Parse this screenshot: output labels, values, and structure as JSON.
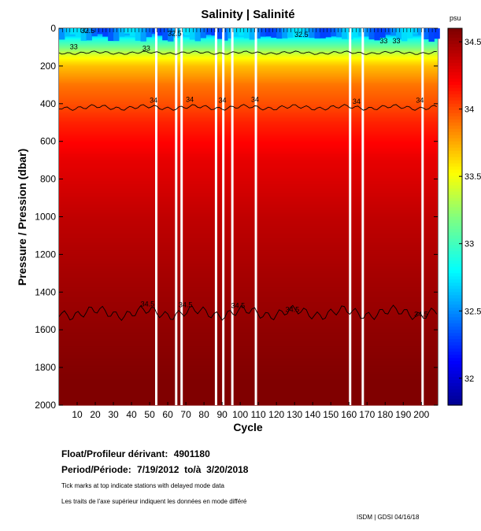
{
  "chart_data": {
    "type": "heatmap",
    "title": "Salinity | Salinité",
    "xlabel": "Cycle",
    "ylabel": "Pressure / Pression (dbar)",
    "xlim": [
      0,
      209
    ],
    "ylim": [
      2000,
      0
    ],
    "x_ticks": [
      10,
      20,
      30,
      40,
      50,
      60,
      70,
      80,
      90,
      100,
      110,
      120,
      130,
      140,
      150,
      160,
      170,
      180,
      190,
      200
    ],
    "x_tick_labels": [
      "10",
      "20",
      "30",
      "40",
      "50",
      "60",
      "70",
      "80",
      "90",
      "100",
      "110",
      "120",
      "130",
      "140",
      "150",
      "160",
      "170",
      "180",
      "190",
      "200"
    ],
    "y_ticks": [
      0,
      200,
      400,
      600,
      800,
      1000,
      1200,
      1400,
      1600,
      1800,
      2000
    ],
    "y_tick_labels": [
      "0",
      "200",
      "400",
      "600",
      "800",
      "1000",
      "1200",
      "1400",
      "1600",
      "1800",
      "2000"
    ],
    "colorbar": {
      "unit": "psu",
      "range": [
        31.8,
        34.6
      ],
      "ticks": [
        32,
        32.5,
        33,
        33.5,
        34,
        34.5
      ],
      "tick_labels": [
        "32",
        "32.5",
        "33",
        "33.5",
        "34",
        "34.5"
      ]
    },
    "profile": {
      "pressure": [
        0,
        30,
        60,
        100,
        150,
        200,
        300,
        400,
        500,
        700,
        1000,
        1300,
        1600,
        2000
      ],
      "salinity": [
        32.35,
        32.55,
        32.9,
        33.15,
        33.5,
        33.7,
        33.9,
        34.0,
        34.12,
        34.28,
        34.4,
        34.48,
        34.55,
        34.62
      ]
    },
    "contours": [
      {
        "level": 33,
        "pressure": 130
      },
      {
        "level": 34,
        "pressure": 420
      },
      {
        "level": 34.5,
        "pressure": 1510
      }
    ],
    "contour_labels": [
      {
        "text": "34",
        "cycle": 50,
        "pressure": 395
      },
      {
        "text": "34",
        "cycle": 70,
        "pressure": 390
      },
      {
        "text": "34",
        "cycle": 88,
        "pressure": 395
      },
      {
        "text": "34",
        "cycle": 106,
        "pressure": 390
      },
      {
        "text": "34",
        "cycle": 162,
        "pressure": 400
      },
      {
        "text": "34",
        "cycle": 197,
        "pressure": 395
      },
      {
        "text": "34.5",
        "cycle": 45,
        "pressure": 1475
      },
      {
        "text": "34.5",
        "cycle": 66,
        "pressure": 1480
      },
      {
        "text": "34.5",
        "cycle": 95,
        "pressure": 1485
      },
      {
        "text": "34.5",
        "cycle": 125,
        "pressure": 1505
      },
      {
        "text": "34.5",
        "cycle": 196,
        "pressure": 1530
      },
      {
        "text": "33",
        "cycle": 6,
        "pressure": 110
      },
      {
        "text": "33",
        "cycle": 46,
        "pressure": 120
      },
      {
        "text": "32.5",
        "cycle": 12,
        "pressure": 25
      },
      {
        "text": "32.5",
        "cycle": 60,
        "pressure": 40
      },
      {
        "text": "32.5",
        "cycle": 130,
        "pressure": 45
      },
      {
        "text": "33",
        "cycle": 177,
        "pressure": 80
      },
      {
        "text": "33",
        "cycle": 184,
        "pressure": 80
      }
    ],
    "gap_cycles": [
      53,
      64,
      67,
      86,
      90,
      95,
      108,
      160,
      167,
      200
    ]
  },
  "info": {
    "float_label": "Float/Profileur dérivant:",
    "float_id": "4901180",
    "period_label": "Period/Période:",
    "period_value": "7/19/2012  to/à  3/20/2018",
    "note_en": "Tick marks at top indicate stations with delayed mode data",
    "note_fr": "Les traits de l'axe supérieur indiquent les données en mode différé",
    "credit": "ISDM | GDSI  04/16/18"
  }
}
